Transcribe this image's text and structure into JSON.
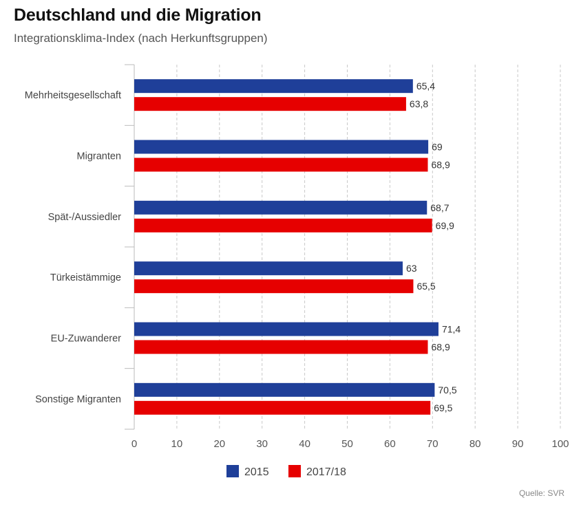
{
  "header": {
    "title": "Deutschland und die Migration",
    "subtitle": "Integrationsklima-Index (nach Herkunftsgruppen)"
  },
  "footer": {
    "source": "Quelle: SVR"
  },
  "chart_data": {
    "type": "bar",
    "orientation": "horizontal",
    "categories": [
      "Mehrheitsgesellschaft",
      "Migranten",
      "Spät-/Aussiedler",
      "Türkeistämmige",
      "EU-Zuwanderer",
      "Sonstige Migranten"
    ],
    "series": [
      {
        "name": "2015",
        "color": "#1f3f99",
        "values": [
          65.4,
          69,
          68.7,
          63,
          71.4,
          70.5
        ],
        "labels": [
          "65,4",
          "69",
          "68,7",
          "63",
          "71,4",
          "70,5"
        ]
      },
      {
        "name": "2017/18",
        "color": "#e60000",
        "values": [
          63.8,
          68.9,
          69.9,
          65.5,
          68.9,
          69.5
        ],
        "labels": [
          "63,8",
          "68,9",
          "69,9",
          "65,5",
          "68,9",
          "69,5"
        ]
      }
    ],
    "xlim": [
      0,
      100
    ],
    "xticks": [
      0,
      10,
      20,
      30,
      40,
      50,
      60,
      70,
      80,
      90,
      100
    ],
    "grid": true,
    "legend_position": "bottom-left"
  }
}
